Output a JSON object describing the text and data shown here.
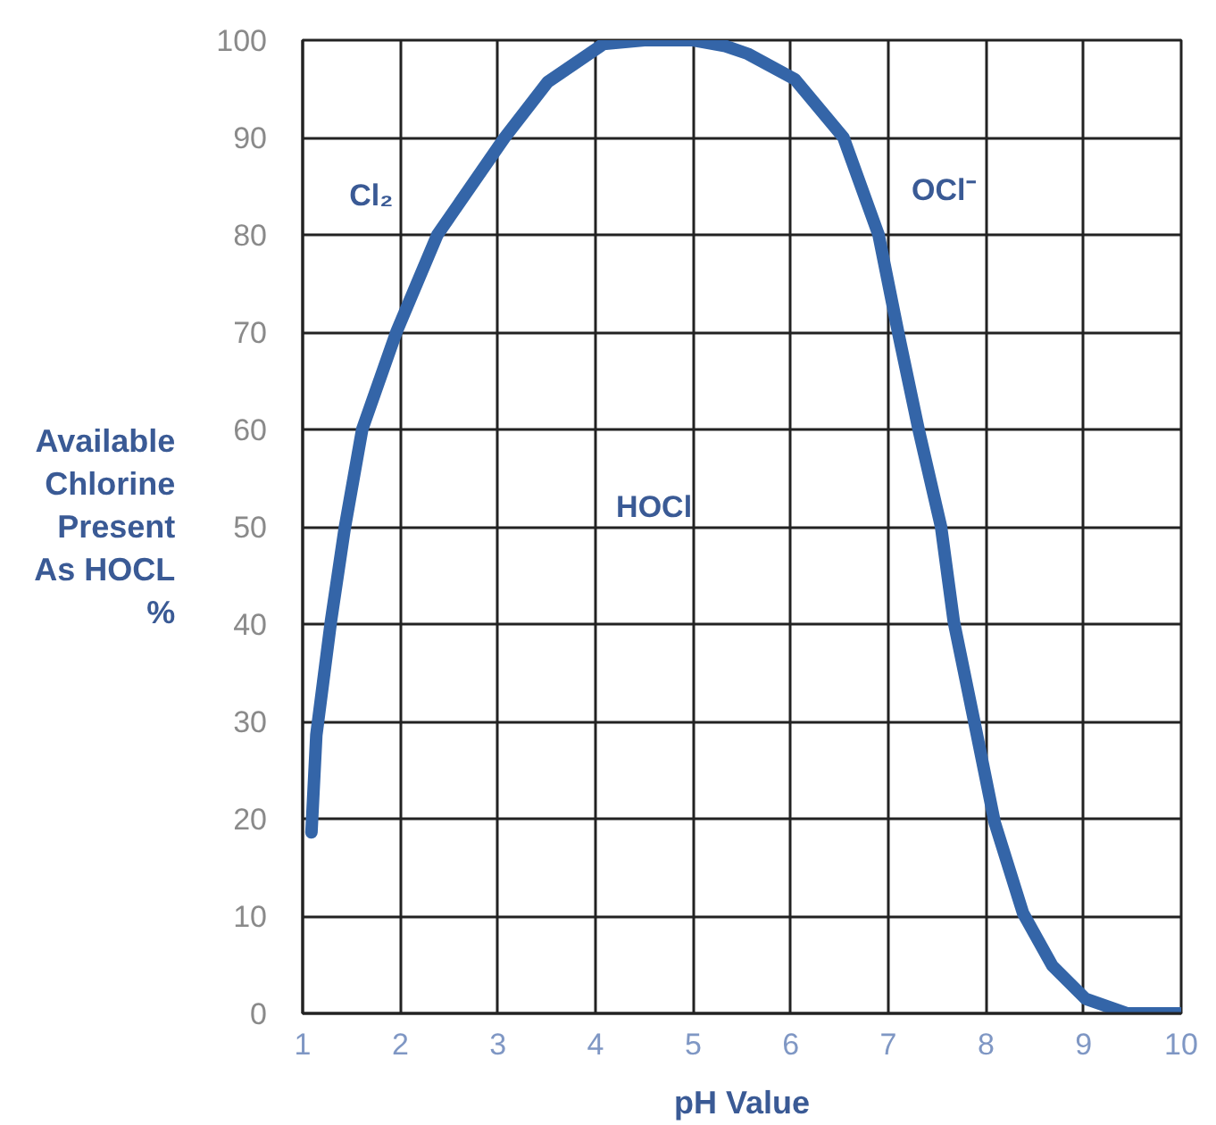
{
  "chart_data": {
    "type": "line",
    "xlabel": "pH Value",
    "ylabel": "Available\nChlorine\nPresent\nAs HOCL\n%",
    "x": [
      1.09,
      1.14,
      1.29,
      1.43,
      1.61,
      1.96,
      2.38,
      3.07,
      3.51,
      4.08,
      4.5,
      5.0,
      5.33,
      5.56,
      6.04,
      6.54,
      6.9,
      7.1,
      7.31,
      7.54,
      7.67,
      7.88,
      8.09,
      8.38,
      8.68,
      9.02,
      9.45,
      10.0
    ],
    "series": [
      {
        "color": "#3465a8",
        "values": [
          18.6,
          28.6,
          40.3,
          49.8,
          60,
          70,
          80,
          90,
          95.7,
          99.6,
          100,
          100,
          99.4,
          98.6,
          96,
          90,
          80,
          70,
          60,
          50,
          40.3,
          30,
          19.6,
          10.3,
          4.9,
          1.5,
          0,
          0
        ]
      }
    ],
    "xlim": [
      1,
      10
    ],
    "xticks": [
      1,
      2,
      3,
      4,
      5,
      6,
      7,
      8,
      9,
      10
    ],
    "ylim": [
      0,
      100
    ],
    "yticks": [
      0,
      10,
      20,
      30,
      40,
      50,
      60,
      70,
      80,
      90,
      100
    ],
    "grid": true,
    "marker": "none",
    "line_style": "solid",
    "annotations": [
      "Cl₂",
      "HOCl",
      "OCl⁻"
    ]
  }
}
